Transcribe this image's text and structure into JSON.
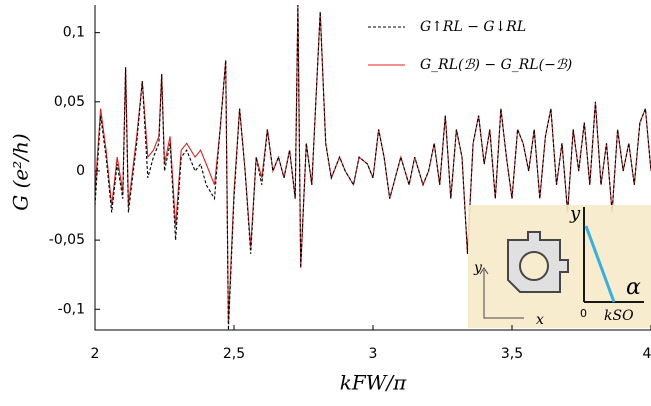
{
  "chart_data": {
    "type": "line",
    "xlabel": "kFW/π",
    "ylabel": "G (e²/h)",
    "xlim": [
      2,
      4
    ],
    "ylim": [
      -0.115,
      0.12
    ],
    "xticks": [
      2,
      {
        "value": 2.5,
        "label": "2,5"
      },
      3,
      {
        "value": 3.5,
        "label": "3,5"
      },
      4
    ],
    "yticks": [
      {
        "value": -0.1,
        "label": "-0,1"
      },
      {
        "value": -0.05,
        "label": "-0,05"
      },
      0,
      {
        "value": 0.05,
        "label": "0,05"
      },
      {
        "value": 0.1,
        "label": "0,1"
      }
    ],
    "legend": "upper right",
    "x": [
      2.0,
      2.02,
      2.04,
      2.06,
      2.08,
      2.1,
      2.11,
      2.12,
      2.15,
      2.17,
      2.19,
      2.21,
      2.23,
      2.24,
      2.25,
      2.27,
      2.29,
      2.31,
      2.33,
      2.36,
      2.38,
      2.4,
      2.43,
      2.45,
      2.47,
      2.48,
      2.5,
      2.52,
      2.54,
      2.56,
      2.58,
      2.6,
      2.62,
      2.64,
      2.66,
      2.68,
      2.7,
      2.72,
      2.73,
      2.74,
      2.76,
      2.78,
      2.81,
      2.83,
      2.85,
      2.88,
      2.9,
      2.93,
      2.95,
      2.98,
      3.0,
      3.02,
      3.04,
      3.06,
      3.08,
      3.1,
      3.13,
      3.15,
      3.18,
      3.2,
      3.22,
      3.24,
      3.26,
      3.28,
      3.3,
      3.32,
      3.34,
      3.36,
      3.38,
      3.4,
      3.42,
      3.44,
      3.46,
      3.48,
      3.5,
      3.52,
      3.54,
      3.56,
      3.58,
      3.6,
      3.62,
      3.64,
      3.66,
      3.68,
      3.7,
      3.72,
      3.74,
      3.76,
      3.78,
      3.8,
      3.82,
      3.84,
      3.86,
      3.88,
      3.9,
      3.92,
      3.94,
      3.96,
      3.98,
      4.0
    ],
    "series": [
      {
        "name": "G_RL(ℬ) − G_RL(−ℬ)",
        "color": "#e02020",
        "dash": false,
        "values": [
          -0.015,
          0.045,
          0.015,
          -0.025,
          0.01,
          -0.015,
          0.075,
          -0.025,
          0.025,
          0.065,
          0.01,
          0.015,
          0.025,
          0.07,
          0.005,
          0.025,
          -0.04,
          0.015,
          0.02,
          0.01,
          0.015,
          0.005,
          -0.01,
          0.03,
          0.08,
          -0.11,
          -0.015,
          0.045,
          0.0,
          -0.055,
          0.01,
          -0.005,
          0.03,
          0.0,
          0.01,
          -0.005,
          0.015,
          -0.02,
          0.12,
          -0.07,
          0.02,
          -0.01,
          0.115,
          0.02,
          -0.005,
          0.01,
          0.0,
          -0.01,
          0.01,
          0.005,
          -0.005,
          0.03,
          0.01,
          -0.02,
          -0.005,
          0.01,
          -0.01,
          0.01,
          -0.01,
          0.0,
          0.02,
          -0.01,
          0.04,
          -0.02,
          0.03,
          0.01,
          -0.06,
          0.02,
          0.04,
          0.005,
          0.03,
          -0.02,
          0.045,
          0.01,
          -0.02,
          0.03,
          0.02,
          0.0,
          0.03,
          -0.02,
          0.025,
          0.045,
          -0.01,
          0.02,
          -0.03,
          0.03,
          0.0,
          0.035,
          -0.01,
          0.05,
          -0.01,
          0.02,
          -0.03,
          0.03,
          0.0,
          0.02,
          -0.01,
          0.035,
          0.045,
          0.0
        ]
      },
      {
        "name": "G↑RL − G↓RL",
        "color": "#000000",
        "dash": true,
        "values": [
          -0.025,
          0.04,
          0.01,
          -0.03,
          0.005,
          -0.02,
          0.075,
          -0.03,
          0.02,
          0.065,
          -0.005,
          0.01,
          0.02,
          0.07,
          0.0,
          0.02,
          -0.05,
          0.01,
          0.015,
          0.0,
          0.005,
          -0.01,
          -0.02,
          0.03,
          0.08,
          -0.115,
          -0.02,
          0.045,
          0.0,
          -0.06,
          0.01,
          -0.01,
          0.03,
          0.0,
          0.01,
          -0.005,
          0.015,
          -0.02,
          0.12,
          -0.07,
          0.02,
          -0.01,
          0.115,
          0.02,
          -0.005,
          0.01,
          0.0,
          -0.01,
          0.01,
          0.005,
          -0.005,
          0.03,
          0.01,
          -0.02,
          -0.005,
          0.01,
          -0.01,
          0.01,
          -0.01,
          0.0,
          0.02,
          -0.01,
          0.04,
          -0.02,
          0.03,
          0.01,
          -0.06,
          0.02,
          0.04,
          0.005,
          0.03,
          -0.02,
          0.045,
          0.01,
          -0.02,
          0.03,
          0.02,
          0.0,
          0.03,
          -0.02,
          0.025,
          0.045,
          -0.01,
          0.02,
          -0.03,
          0.03,
          0.0,
          0.035,
          -0.01,
          0.05,
          -0.01,
          0.02,
          -0.03,
          0.03,
          0.0,
          0.02,
          -0.01,
          0.035,
          0.045,
          0.0
        ]
      }
    ],
    "inset": {
      "y_left": "y",
      "x_left": "x",
      "y_right": "y",
      "alpha": "α",
      "zero": "0",
      "kso": "kSO"
    }
  }
}
